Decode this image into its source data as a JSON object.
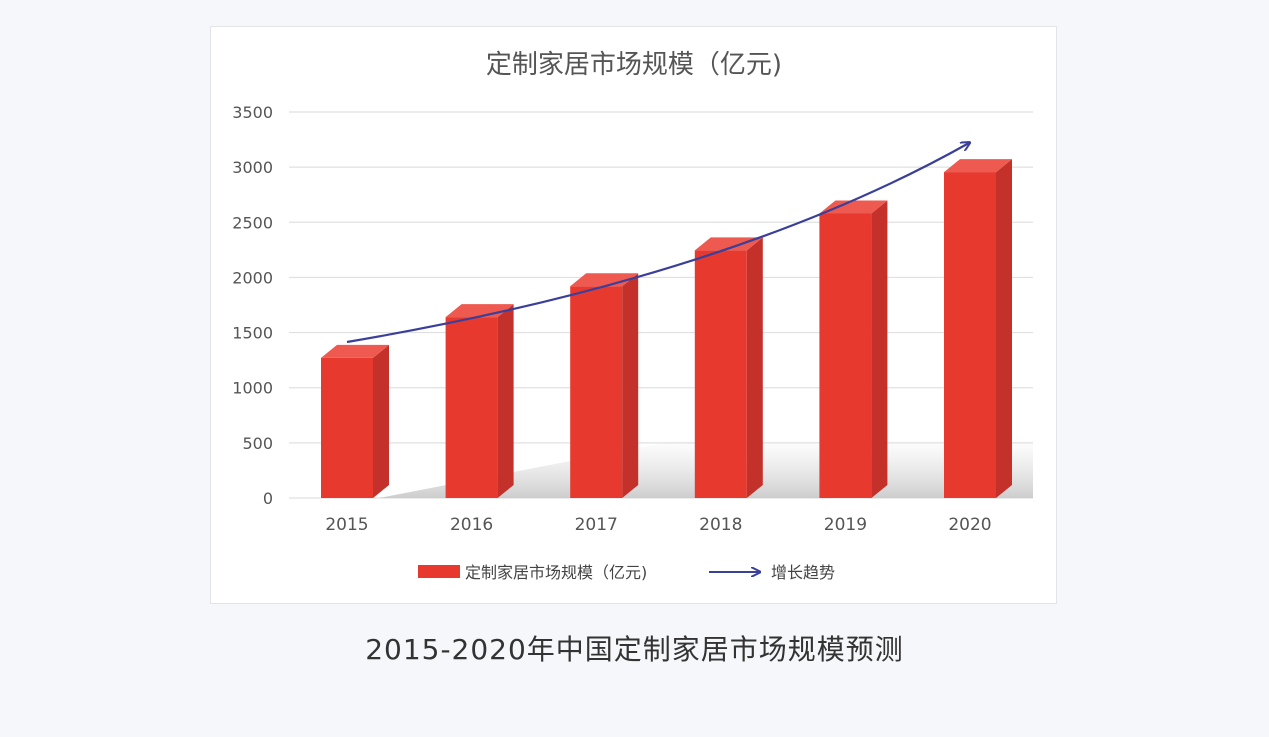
{
  "chart_data": {
    "type": "bar",
    "title": "定制家居市场规模（亿元)",
    "categories": [
      "2015",
      "2016",
      "2017",
      "2018",
      "2019",
      "2020"
    ],
    "series": [
      {
        "name": "定制家居市场规模（亿元)",
        "values": [
          1270,
          1640,
          1920,
          2245,
          2580,
          2955
        ],
        "color": "#e8392f"
      }
    ],
    "trend": {
      "name": "增长趋势",
      "color": "#3a3f9a"
    },
    "ylim": [
      0,
      3500
    ],
    "yticks": [
      0,
      500,
      1000,
      1500,
      2000,
      2500,
      3000,
      3500
    ],
    "grid": true,
    "legend": "bottom",
    "style": "3d-bar"
  },
  "caption": "2015-2020年中国定制家居市场规模预测"
}
